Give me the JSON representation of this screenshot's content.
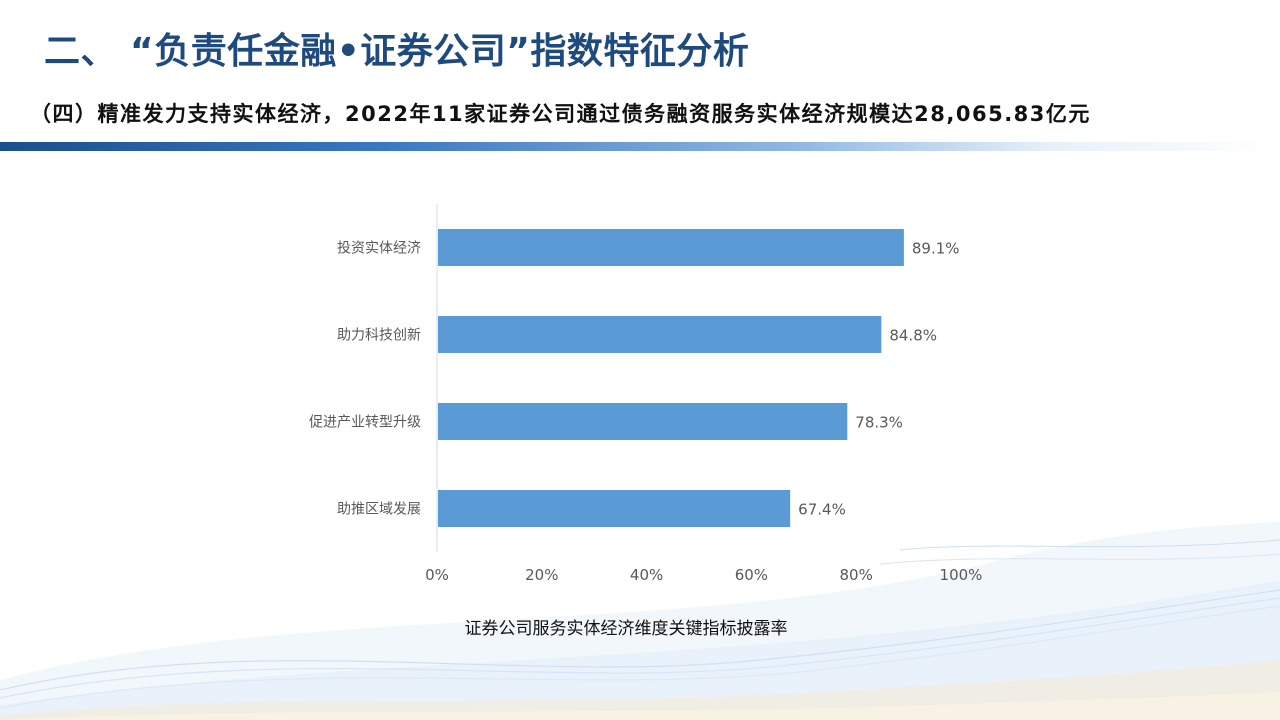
{
  "header": {
    "title": "二、 “负责任金融•证券公司”指数特征分析",
    "subtitle": "（四）精准发力支持实体经济，2022年11家证券公司通过债务融资服务实体经济规模达28,065.83亿元"
  },
  "colors": {
    "title": "#1f4a7d",
    "bar": "#5b9bd5",
    "axis_text": "#595959"
  },
  "chart_data": {
    "type": "bar",
    "orientation": "horizontal",
    "title": "证券公司服务实体经济维度关键指标披露率",
    "categories": [
      "投资实体经济",
      "助力科技创新",
      "促进产业转型升级",
      "助推区域发展"
    ],
    "values": [
      89.1,
      84.8,
      78.3,
      67.4
    ],
    "value_labels": [
      "89.1%",
      "84.8%",
      "78.3%",
      "67.4%"
    ],
    "xlim": [
      0,
      100
    ],
    "xticks": [
      0,
      20,
      40,
      60,
      80,
      100
    ],
    "xtick_labels": [
      "0%",
      "20%",
      "40%",
      "60%",
      "80%",
      "100%"
    ],
    "xlabel": "",
    "ylabel": "",
    "grid": false,
    "legend": "none"
  }
}
